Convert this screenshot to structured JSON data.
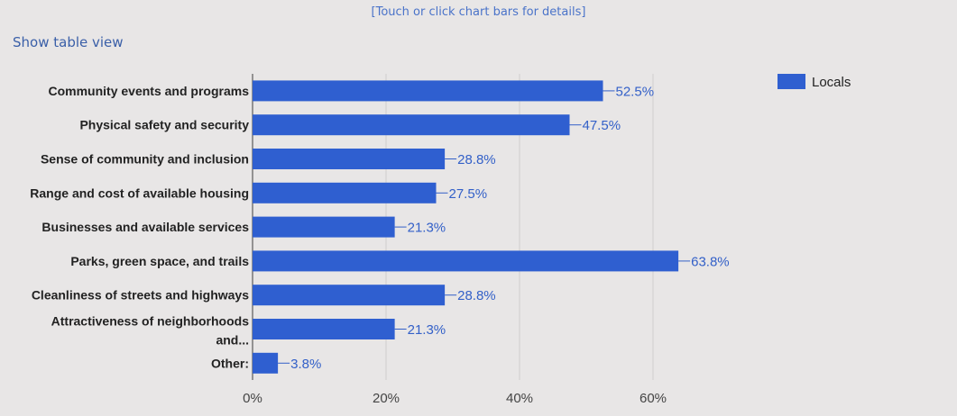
{
  "header": {
    "hint": "[Touch or click chart bars for details]",
    "table_link": "Show table view"
  },
  "colors": {
    "bar": "#2f5fd0",
    "grid": "#cfcdcd",
    "axis": "#777777",
    "value_text": "#3360c8"
  },
  "chart_data": {
    "type": "bar",
    "orientation": "horizontal",
    "categories": [
      "Community events and programs",
      "Physical safety and security",
      "Sense of community and inclusion",
      "Range and cost of available housing",
      "Businesses and available services",
      "Parks, green space, and trails",
      "Cleanliness of streets and highways",
      "Attractiveness of neighborhoods and...",
      "Other:"
    ],
    "series": [
      {
        "name": "Locals",
        "values": [
          52.5,
          47.5,
          28.8,
          27.5,
          21.3,
          63.8,
          28.8,
          21.3,
          3.8
        ],
        "labels": [
          "52.5%",
          "47.5%",
          "28.8%",
          "27.5%",
          "21.3%",
          "63.8%",
          "28.8%",
          "21.3%",
          "3.8%"
        ]
      }
    ],
    "x_ticks": [
      0,
      20,
      40,
      60
    ],
    "x_tick_labels": [
      "0%",
      "20%",
      "40%",
      "60%"
    ],
    "xlim": [
      0,
      70
    ],
    "grid": true,
    "legend_position": "top-right"
  }
}
